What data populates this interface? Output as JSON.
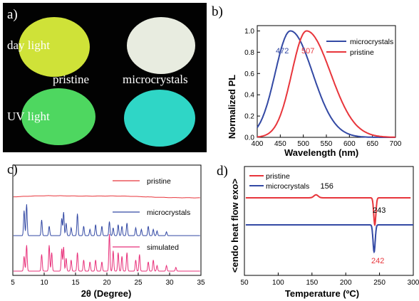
{
  "colors": {
    "red": "#e8353b",
    "blue": "#3349a4",
    "magenta": "#e8307a",
    "pristine_day": "#cfe238",
    "micro_day": "#e8ece0",
    "pristine_uv": "#4ed760",
    "micro_uv": "#2fd6c6"
  },
  "panel_a": {
    "letter": "a)",
    "row1_label": "day light",
    "row2_label": "UV light",
    "col1_label": "pristine",
    "col2_label": "microcrystals"
  },
  "chart_data": [
    {
      "panel": "b)",
      "type": "line",
      "xlabel": "Wavelength (nm)",
      "ylabel": "Normalized PL",
      "xlim": [
        400,
        700
      ],
      "ylim": [
        0.0,
        1.05
      ],
      "xticks": [
        "400",
        "450",
        "500",
        "550",
        "600",
        "650",
        "700"
      ],
      "yticks": [
        "0.0",
        "0.2",
        "0.4",
        "0.6",
        "0.8",
        "1.0"
      ],
      "legend_position": "top-right",
      "series": [
        {
          "name": "microcrystals",
          "color": "#3349a4",
          "peak": 472,
          "left_width": 33,
          "right_width": 48
        },
        {
          "name": "pristine",
          "color": "#e8353b",
          "peak": 507,
          "left_width": 32,
          "right_width": 52
        }
      ],
      "annotations": [
        {
          "text": "472",
          "x": 472,
          "color": "#3349a4"
        },
        {
          "text": "507",
          "x": 507,
          "color": "#e8353b"
        }
      ]
    },
    {
      "panel": "c)",
      "type": "line",
      "xlabel": "2θ (Degree)",
      "xlim": [
        5,
        35
      ],
      "xticks": [
        "5",
        "10",
        "15",
        "20",
        "25",
        "30",
        "35"
      ],
      "series": [
        {
          "name": "pristine",
          "color": "#e8353b",
          "type": "broad",
          "humps": [
            {
              "x": 10.5,
              "h": 0.35
            },
            {
              "x": 21.5,
              "h": 0.3
            }
          ]
        },
        {
          "name": "microcrystals",
          "color": "#3349a4",
          "peaks": [
            [
              6.8,
              0.8
            ],
            [
              7.2,
              1.0
            ],
            [
              9.6,
              0.5
            ],
            [
              10.8,
              0.3
            ],
            [
              12.8,
              0.55
            ],
            [
              13.1,
              0.75
            ],
            [
              13.5,
              0.4
            ],
            [
              14.3,
              0.25
            ],
            [
              15.3,
              0.7
            ],
            [
              16.3,
              0.3
            ],
            [
              17.3,
              0.2
            ],
            [
              18.2,
              0.35
            ],
            [
              19.2,
              0.3
            ],
            [
              20.4,
              0.45
            ],
            [
              21.0,
              0.25
            ],
            [
              21.8,
              0.35
            ],
            [
              22.4,
              0.3
            ],
            [
              23.2,
              0.4
            ],
            [
              24.6,
              0.25
            ],
            [
              25.5,
              0.2
            ],
            [
              26.6,
              0.3
            ],
            [
              27.4,
              0.2
            ],
            [
              28.0,
              0.15
            ],
            [
              29.5,
              0.12
            ]
          ]
        },
        {
          "name": "simulated",
          "color": "#e8307a",
          "peaks": [
            [
              6.8,
              0.4
            ],
            [
              7.2,
              0.7
            ],
            [
              9.6,
              0.45
            ],
            [
              10.8,
              0.7
            ],
            [
              11.2,
              0.5
            ],
            [
              12.8,
              0.6
            ],
            [
              13.1,
              0.65
            ],
            [
              13.5,
              0.35
            ],
            [
              14.3,
              0.3
            ],
            [
              15.3,
              0.5
            ],
            [
              16.3,
              0.3
            ],
            [
              17.3,
              0.25
            ],
            [
              18.2,
              0.3
            ],
            [
              19.2,
              0.25
            ],
            [
              20.4,
              1.0
            ],
            [
              21.0,
              0.55
            ],
            [
              21.8,
              0.5
            ],
            [
              22.4,
              0.4
            ],
            [
              23.2,
              0.5
            ],
            [
              24.6,
              0.3
            ],
            [
              25.2,
              0.45
            ],
            [
              26.6,
              0.25
            ],
            [
              27.4,
              0.3
            ],
            [
              28.0,
              0.15
            ],
            [
              29.5,
              0.15
            ],
            [
              31.0,
              0.1
            ]
          ]
        }
      ]
    },
    {
      "panel": "d)",
      "type": "line",
      "xlabel": "Temperature (ºC)",
      "ylabel": "<endo  heat flow  exo>",
      "xlim": [
        50,
        300
      ],
      "xticks": [
        "50",
        "100",
        "150",
        "200",
        "250",
        "300"
      ],
      "legend_position": "top-left",
      "series": [
        {
          "name": "pristine",
          "color": "#e8353b",
          "features": [
            {
              "x": 156,
              "type": "exo",
              "depth": 0.35
            },
            {
              "x": 243,
              "type": "endo",
              "depth": 1.0
            }
          ]
        },
        {
          "name": "microcrystals",
          "color": "#3349a4",
          "features": [
            {
              "x": 242,
              "type": "endo",
              "depth": 1.0
            }
          ]
        }
      ],
      "annotations": [
        {
          "text": "156",
          "x": 156,
          "color": "#000000"
        },
        {
          "text": "243",
          "x": 243,
          "color": "#000000"
        },
        {
          "text": "242",
          "x": 242,
          "color": "#e8353b"
        }
      ]
    }
  ]
}
